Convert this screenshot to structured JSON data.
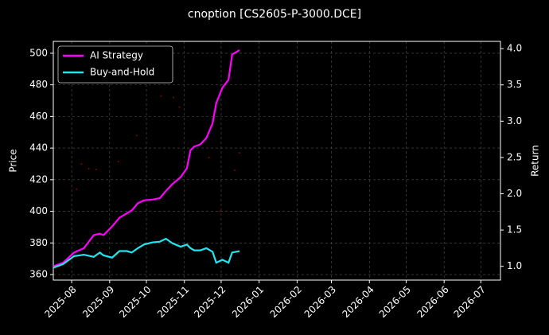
{
  "chart_data": {
    "type": "line",
    "title": "cnoption [CS2605-P-3000.DCE]",
    "ylabel": "Price",
    "y2label": "Return",
    "x": [
      "2025-07-17",
      "2025-07-25",
      "2025-08-03",
      "2025-08-11",
      "2025-08-19",
      "2025-08-24",
      "2025-08-27",
      "2025-09-03",
      "2025-09-09",
      "2025-09-15",
      "2025-09-19",
      "2025-09-24",
      "2025-09-29",
      "2025-10-06",
      "2025-10-12",
      "2025-10-17",
      "2025-10-22",
      "2025-10-29",
      "2025-11-03",
      "2025-11-06",
      "2025-11-09",
      "2025-11-14",
      "2025-11-19",
      "2025-11-24",
      "2025-11-27",
      "2025-12-02",
      "2025-12-07",
      "2025-12-10",
      "2025-12-16"
    ],
    "series": [
      {
        "name": "AI Strategy",
        "color": "#ff00ff",
        "axis": "y2",
        "values": [
          1.0,
          1.05,
          1.19,
          1.25,
          1.43,
          1.45,
          1.43,
          1.55,
          1.67,
          1.73,
          1.77,
          1.87,
          1.91,
          1.92,
          1.94,
          2.04,
          2.13,
          2.23,
          2.35,
          2.6,
          2.65,
          2.68,
          2.77,
          2.97,
          3.25,
          3.46,
          3.57,
          3.92,
          3.98
        ]
      },
      {
        "name": "Buy-and-Hold",
        "color": "#22e5ee",
        "axis": "y2",
        "values": [
          0.98,
          1.03,
          1.14,
          1.16,
          1.13,
          1.19,
          1.15,
          1.12,
          1.21,
          1.21,
          1.19,
          1.25,
          1.3,
          1.33,
          1.34,
          1.38,
          1.32,
          1.27,
          1.3,
          1.25,
          1.22,
          1.22,
          1.25,
          1.2,
          1.05,
          1.09,
          1.05,
          1.19,
          1.21
        ]
      }
    ],
    "price_points": {
      "color": "#8b0000",
      "x": [
        "2025-08-05",
        "2025-08-09",
        "2025-08-15",
        "2025-08-21",
        "2025-09-08",
        "2025-09-23",
        "2025-10-13",
        "2025-10-23",
        "2025-10-28",
        "2025-11-21",
        "2025-11-30",
        "2025-12-12",
        "2025-12-16"
      ],
      "values": [
        414,
        430,
        427,
        426.5,
        431.5,
        448,
        473,
        472,
        466,
        434,
        400,
        426,
        437
      ]
    },
    "xlim": [
      "2025-07-17",
      "2026-07-17"
    ],
    "xticks": [
      "2025-08",
      "2025-09",
      "2025-10",
      "2025-11",
      "2025-12",
      "2026-01",
      "2026-02",
      "2026-03",
      "2026-04",
      "2026-05",
      "2026-06",
      "2026-07"
    ],
    "ylim": [
      356.5,
      507.5
    ],
    "yticks": [
      360,
      380,
      400,
      420,
      440,
      460,
      480,
      500
    ],
    "y2lim": [
      0.81,
      4.1
    ],
    "y2ticks": [
      {
        "value": 1.0,
        "label": "1.0"
      },
      {
        "value": 1.5,
        "label": "1.5"
      },
      {
        "value": 2.0,
        "label": "2.0"
      },
      {
        "value": 2.5,
        "label": "2.5"
      },
      {
        "value": 3.0,
        "label": "3.0"
      },
      {
        "value": 3.5,
        "label": "3.5"
      },
      {
        "value": 4.0,
        "label": "4.0"
      }
    ],
    "grid": true,
    "legend": "upper left"
  }
}
